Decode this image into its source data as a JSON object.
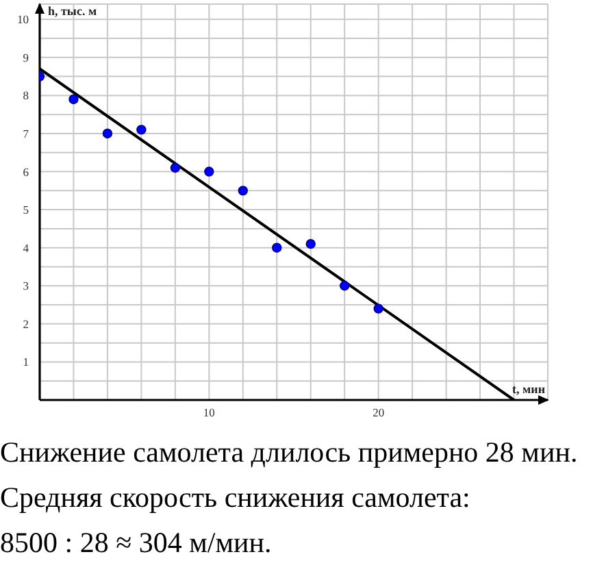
{
  "chart_data": {
    "type": "scatter",
    "xlabel": "t, мин",
    "ylabel": "h, тыс. м",
    "xlim": [
      0,
      30
    ],
    "ylim": [
      0,
      10.4
    ],
    "xticks": [
      {
        "value": 0,
        "label": null
      },
      {
        "value": 2,
        "label": null
      },
      {
        "value": 4,
        "label": null
      },
      {
        "value": 6,
        "label": null
      },
      {
        "value": 8,
        "label": null
      },
      10,
      {
        "value": 12,
        "label": null
      },
      {
        "value": 14,
        "label": null
      },
      {
        "value": 16,
        "label": null
      },
      {
        "value": 18,
        "label": null
      },
      20,
      {
        "value": 22,
        "label": null
      },
      {
        "value": 24,
        "label": null
      },
      {
        "value": 26,
        "label": null
      },
      {
        "value": 28,
        "label": null
      },
      {
        "value": 30,
        "label": null
      }
    ],
    "yticks": [
      {
        "value": 0,
        "label": null
      },
      {
        "value": 0.5,
        "label": null
      },
      1,
      {
        "value": 1.5,
        "label": null
      },
      2,
      {
        "value": 2.5,
        "label": null
      },
      3,
      {
        "value": 3.5,
        "label": null
      },
      4,
      {
        "value": 4.5,
        "label": null
      },
      5,
      {
        "value": 5.5,
        "label": null
      },
      6,
      {
        "value": 6.5,
        "label": null
      },
      7,
      {
        "value": 7.5,
        "label": null
      },
      8,
      {
        "value": 8.5,
        "label": null
      },
      9,
      {
        "value": 9.5,
        "label": null
      },
      10
    ],
    "grid": true,
    "marker": "circle",
    "series": [
      {
        "color": "#0000ff",
        "x": [
          0,
          2,
          4,
          6,
          8,
          10,
          12,
          14,
          16,
          18,
          20
        ],
        "values": [
          8.5,
          7.9,
          7.0,
          7.1,
          6.1,
          6.0,
          5.5,
          4.0,
          4.1,
          3.0,
          2.4
        ]
      },
      {
        "type": "line",
        "color": "#000000",
        "marker": "none",
        "x": [
          0,
          28
        ],
        "values": [
          8.7,
          0
        ]
      }
    ],
    "annotations": [
      "Снижение самолета длилось примерно 28 мин.",
      "Средняя скорость снижения самолета:",
      "8500 : 28 ≈ 304 м/мин."
    ]
  }
}
